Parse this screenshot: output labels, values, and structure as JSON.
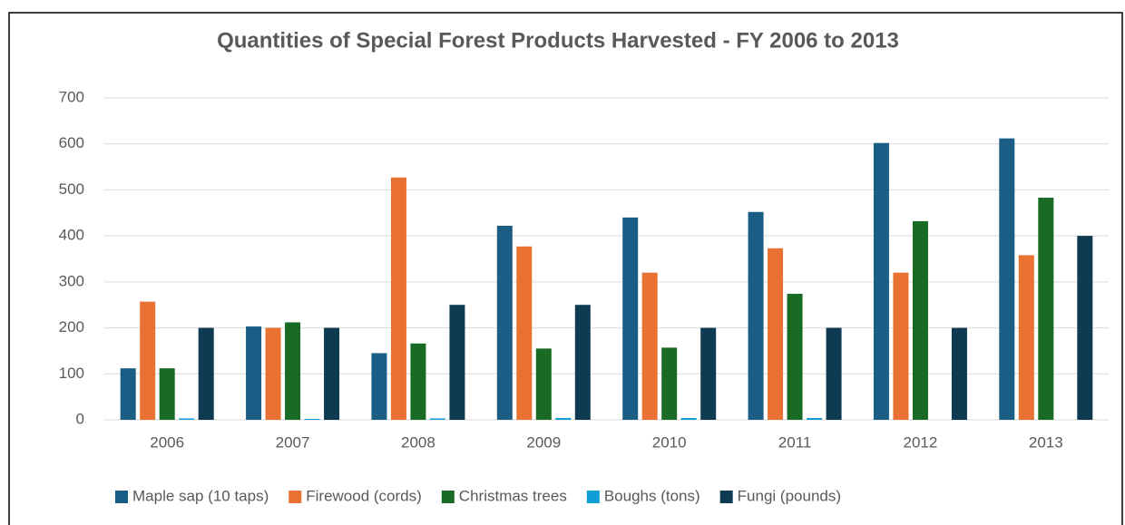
{
  "chart_data": {
    "type": "bar",
    "title": "Quantities of Special Forest Products Harvested - FY 2006 to 2013",
    "categories": [
      "2006",
      "2007",
      "2008",
      "2009",
      "2010",
      "2011",
      "2012",
      "2013"
    ],
    "series": [
      {
        "name": "Maple sap (10 taps)",
        "color": "#1b5e85",
        "values": [
          112,
          203,
          145,
          422,
          440,
          452,
          602,
          612
        ]
      },
      {
        "name": "Firewood (cords)",
        "color": "#e97132",
        "values": [
          257,
          200,
          527,
          377,
          320,
          373,
          320,
          358
        ]
      },
      {
        "name": "Christmas trees",
        "color": "#196b24",
        "values": [
          112,
          212,
          166,
          155,
          157,
          274,
          432,
          483
        ]
      },
      {
        "name": "Boughs (tons)",
        "color": "#0f9ed5",
        "values": [
          3,
          2,
          3,
          4,
          4,
          4,
          0,
          0
        ]
      },
      {
        "name": "Fungi (pounds)",
        "color": "#0e3a52",
        "values": [
          200,
          200,
          250,
          250,
          200,
          200,
          200,
          400
        ]
      }
    ],
    "ylim": [
      0,
      700
    ],
    "yticks": [
      0,
      100,
      200,
      300,
      400,
      500,
      600,
      700
    ],
    "grid": true,
    "legend": "bottom"
  }
}
